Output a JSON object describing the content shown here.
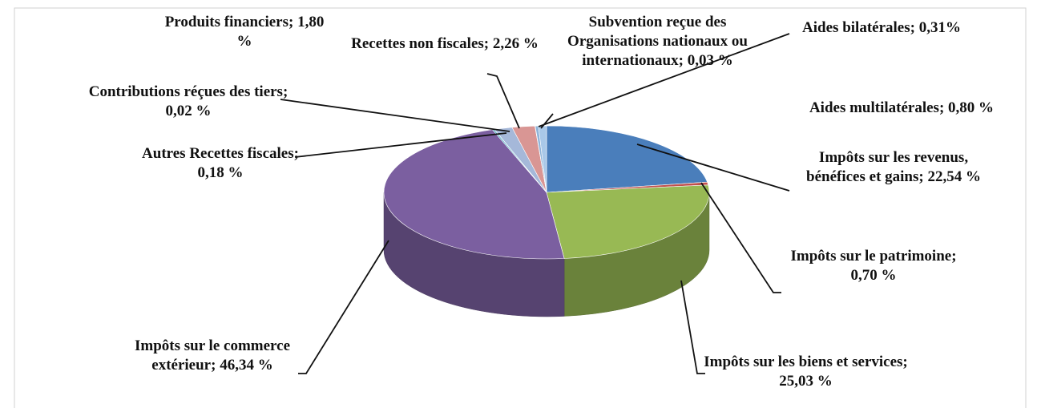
{
  "chart_data": {
    "type": "pie",
    "categories": [
      "Impôts sur les revenus, bénéfices et gains;",
      "Impôts sur le patrimoine;",
      "Impôts sur les biens et services;",
      "Impôts sur le commerce extérieur;",
      "Autres Recettes fiscales;",
      "Contributions réçues des tiers;",
      "Produits financiers;",
      "Recettes non fiscales;",
      "Subvention reçue des Organisations nationaux ou internationaux;",
      "Aides bilatérales;",
      "Aides multilatérales;"
    ],
    "values": [
      22.54,
      0.7,
      25.03,
      46.34,
      0.18,
      0.02,
      1.8,
      2.26,
      0.03,
      0.31,
      0.8
    ],
    "value_labels": [
      "22,54 %",
      "0,70 %",
      "25,03 %",
      "46,34 %",
      "0,18 %",
      "0,02 %",
      "1,80 %",
      "2,26 %",
      "0,03 %",
      "0,31%",
      "0,80 %"
    ],
    "colors": [
      "#4a7ebb",
      "#c0504d",
      "#98b954",
      "#7b5fa0",
      "#4bacc6",
      "#f79646",
      "#a5b8d9",
      "#d99694",
      "#b8cce4",
      "#8fb4d9",
      "#a9c8e8"
    ]
  }
}
